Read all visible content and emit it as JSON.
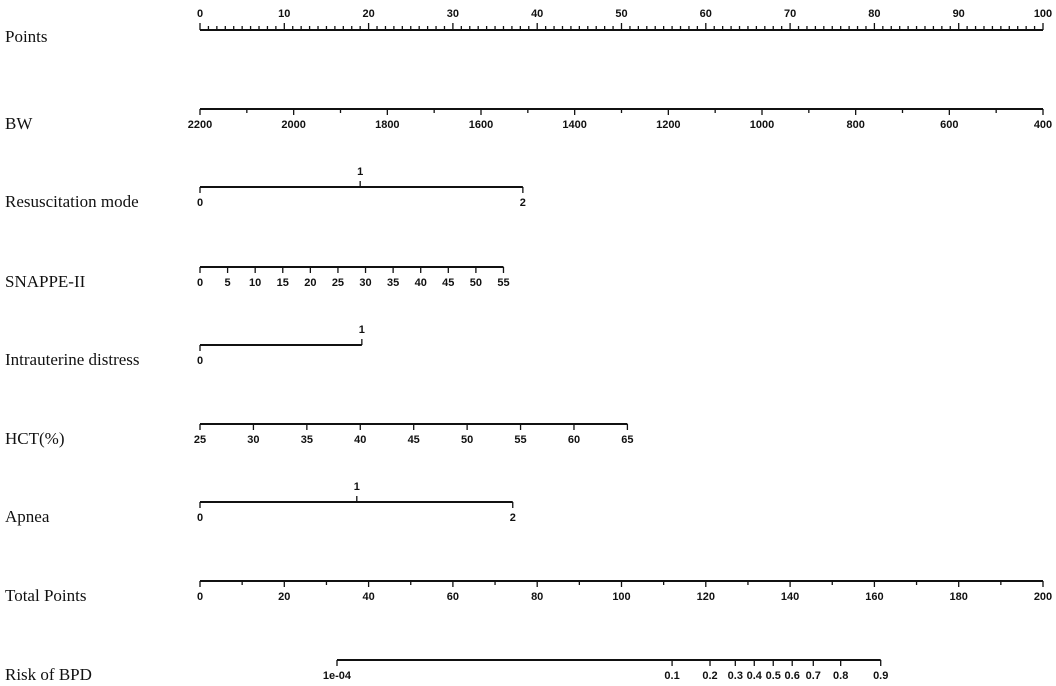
{
  "chart_data": {
    "type": "nomogram",
    "title": "",
    "points_range": [
      0,
      100
    ],
    "rows": [
      {
        "label": "Points",
        "kind": "points",
        "labels_above": true,
        "labeled": [
          0,
          10,
          20,
          30,
          40,
          50,
          60,
          70,
          80,
          90,
          100
        ],
        "ticks": [
          0,
          1,
          2,
          3,
          4,
          5,
          6,
          7,
          8,
          9,
          10,
          11,
          12,
          13,
          14,
          15,
          16,
          17,
          18,
          19,
          20,
          21,
          22,
          23,
          24,
          25,
          26,
          27,
          28,
          29,
          30,
          31,
          32,
          33,
          34,
          35,
          36,
          37,
          38,
          39,
          40,
          41,
          42,
          43,
          44,
          45,
          46,
          47,
          48,
          49,
          50,
          51,
          52,
          53,
          54,
          55,
          56,
          57,
          58,
          59,
          60,
          61,
          62,
          63,
          64,
          65,
          66,
          67,
          68,
          69,
          70,
          71,
          72,
          73,
          74,
          75,
          76,
          77,
          78,
          79,
          80,
          81,
          82,
          83,
          84,
          85,
          86,
          87,
          88,
          89,
          90,
          91,
          92,
          93,
          94,
          95,
          96,
          97,
          98,
          99,
          100
        ]
      },
      {
        "label": "BW",
        "kind": "linear",
        "domain": [
          2200,
          400
        ],
        "points": [
          0,
          100
        ],
        "labeled": [
          2200,
          2000,
          1800,
          1600,
          1400,
          1200,
          1000,
          800,
          600,
          400
        ],
        "ticks": [
          2200,
          2100,
          2000,
          1900,
          1800,
          1700,
          1600,
          1500,
          1400,
          1300,
          1200,
          1100,
          1000,
          900,
          800,
          700,
          600,
          500,
          400
        ]
      },
      {
        "label": "Resuscitation mode",
        "kind": "categorical",
        "categories": [
          {
            "value": "0",
            "points": 0,
            "side": "below"
          },
          {
            "value": "1",
            "points": 19,
            "side": "above"
          },
          {
            "value": "2",
            "points": 38.3,
            "side": "below"
          }
        ]
      },
      {
        "label": "SNAPPE-II",
        "kind": "linear",
        "domain": [
          0,
          55
        ],
        "points": [
          0,
          36
        ],
        "labeled": [
          0,
          5,
          10,
          15,
          20,
          25,
          30,
          35,
          40,
          45,
          50,
          55
        ],
        "ticks": [
          0,
          5,
          10,
          15,
          20,
          25,
          30,
          35,
          40,
          45,
          50,
          55
        ]
      },
      {
        "label": "Intrauterine distress",
        "kind": "categorical",
        "categories": [
          {
            "value": "0",
            "points": 0,
            "side": "below"
          },
          {
            "value": "1",
            "points": 19.2,
            "side": "above"
          }
        ]
      },
      {
        "label": "HCT(%)",
        "kind": "linear",
        "domain": [
          25,
          65
        ],
        "points": [
          0,
          50.7
        ],
        "labeled": [
          25,
          30,
          35,
          40,
          45,
          50,
          55,
          60,
          65
        ],
        "ticks": [
          25,
          30,
          35,
          40,
          45,
          50,
          55,
          60,
          65
        ]
      },
      {
        "label": "Apnea",
        "kind": "categorical",
        "categories": [
          {
            "value": "0",
            "points": 0,
            "side": "below"
          },
          {
            "value": "1",
            "points": 18.6,
            "side": "above"
          },
          {
            "value": "2",
            "points": 37.1,
            "side": "below"
          }
        ]
      },
      {
        "label": "Total Points",
        "kind": "linear",
        "domain": [
          0,
          200
        ],
        "points": [
          0,
          100
        ],
        "labeled": [
          0,
          20,
          40,
          60,
          80,
          100,
          120,
          140,
          160,
          180,
          200
        ],
        "ticks": [
          0,
          10,
          20,
          30,
          40,
          50,
          60,
          70,
          80,
          90,
          100,
          110,
          120,
          130,
          140,
          150,
          160,
          170,
          180,
          190,
          200
        ]
      },
      {
        "label": "Risk of BPD",
        "kind": "risk",
        "total_points_axis": [
          0,
          200
        ],
        "values": [
          {
            "risk": "1e-04",
            "total_points": 32.5
          },
          {
            "risk": "0.1",
            "total_points": 112
          },
          {
            "risk": "0.2",
            "total_points": 121
          },
          {
            "risk": "0.3",
            "total_points": 127
          },
          {
            "risk": "0.4",
            "total_points": 131.5
          },
          {
            "risk": "0.5",
            "total_points": 136
          },
          {
            "risk": "0.6",
            "total_points": 140.5
          },
          {
            "risk": "0.7",
            "total_points": 145.5
          },
          {
            "risk": "0.8",
            "total_points": 152
          },
          {
            "risk": "0.9",
            "total_points": 161.5
          }
        ]
      }
    ]
  }
}
